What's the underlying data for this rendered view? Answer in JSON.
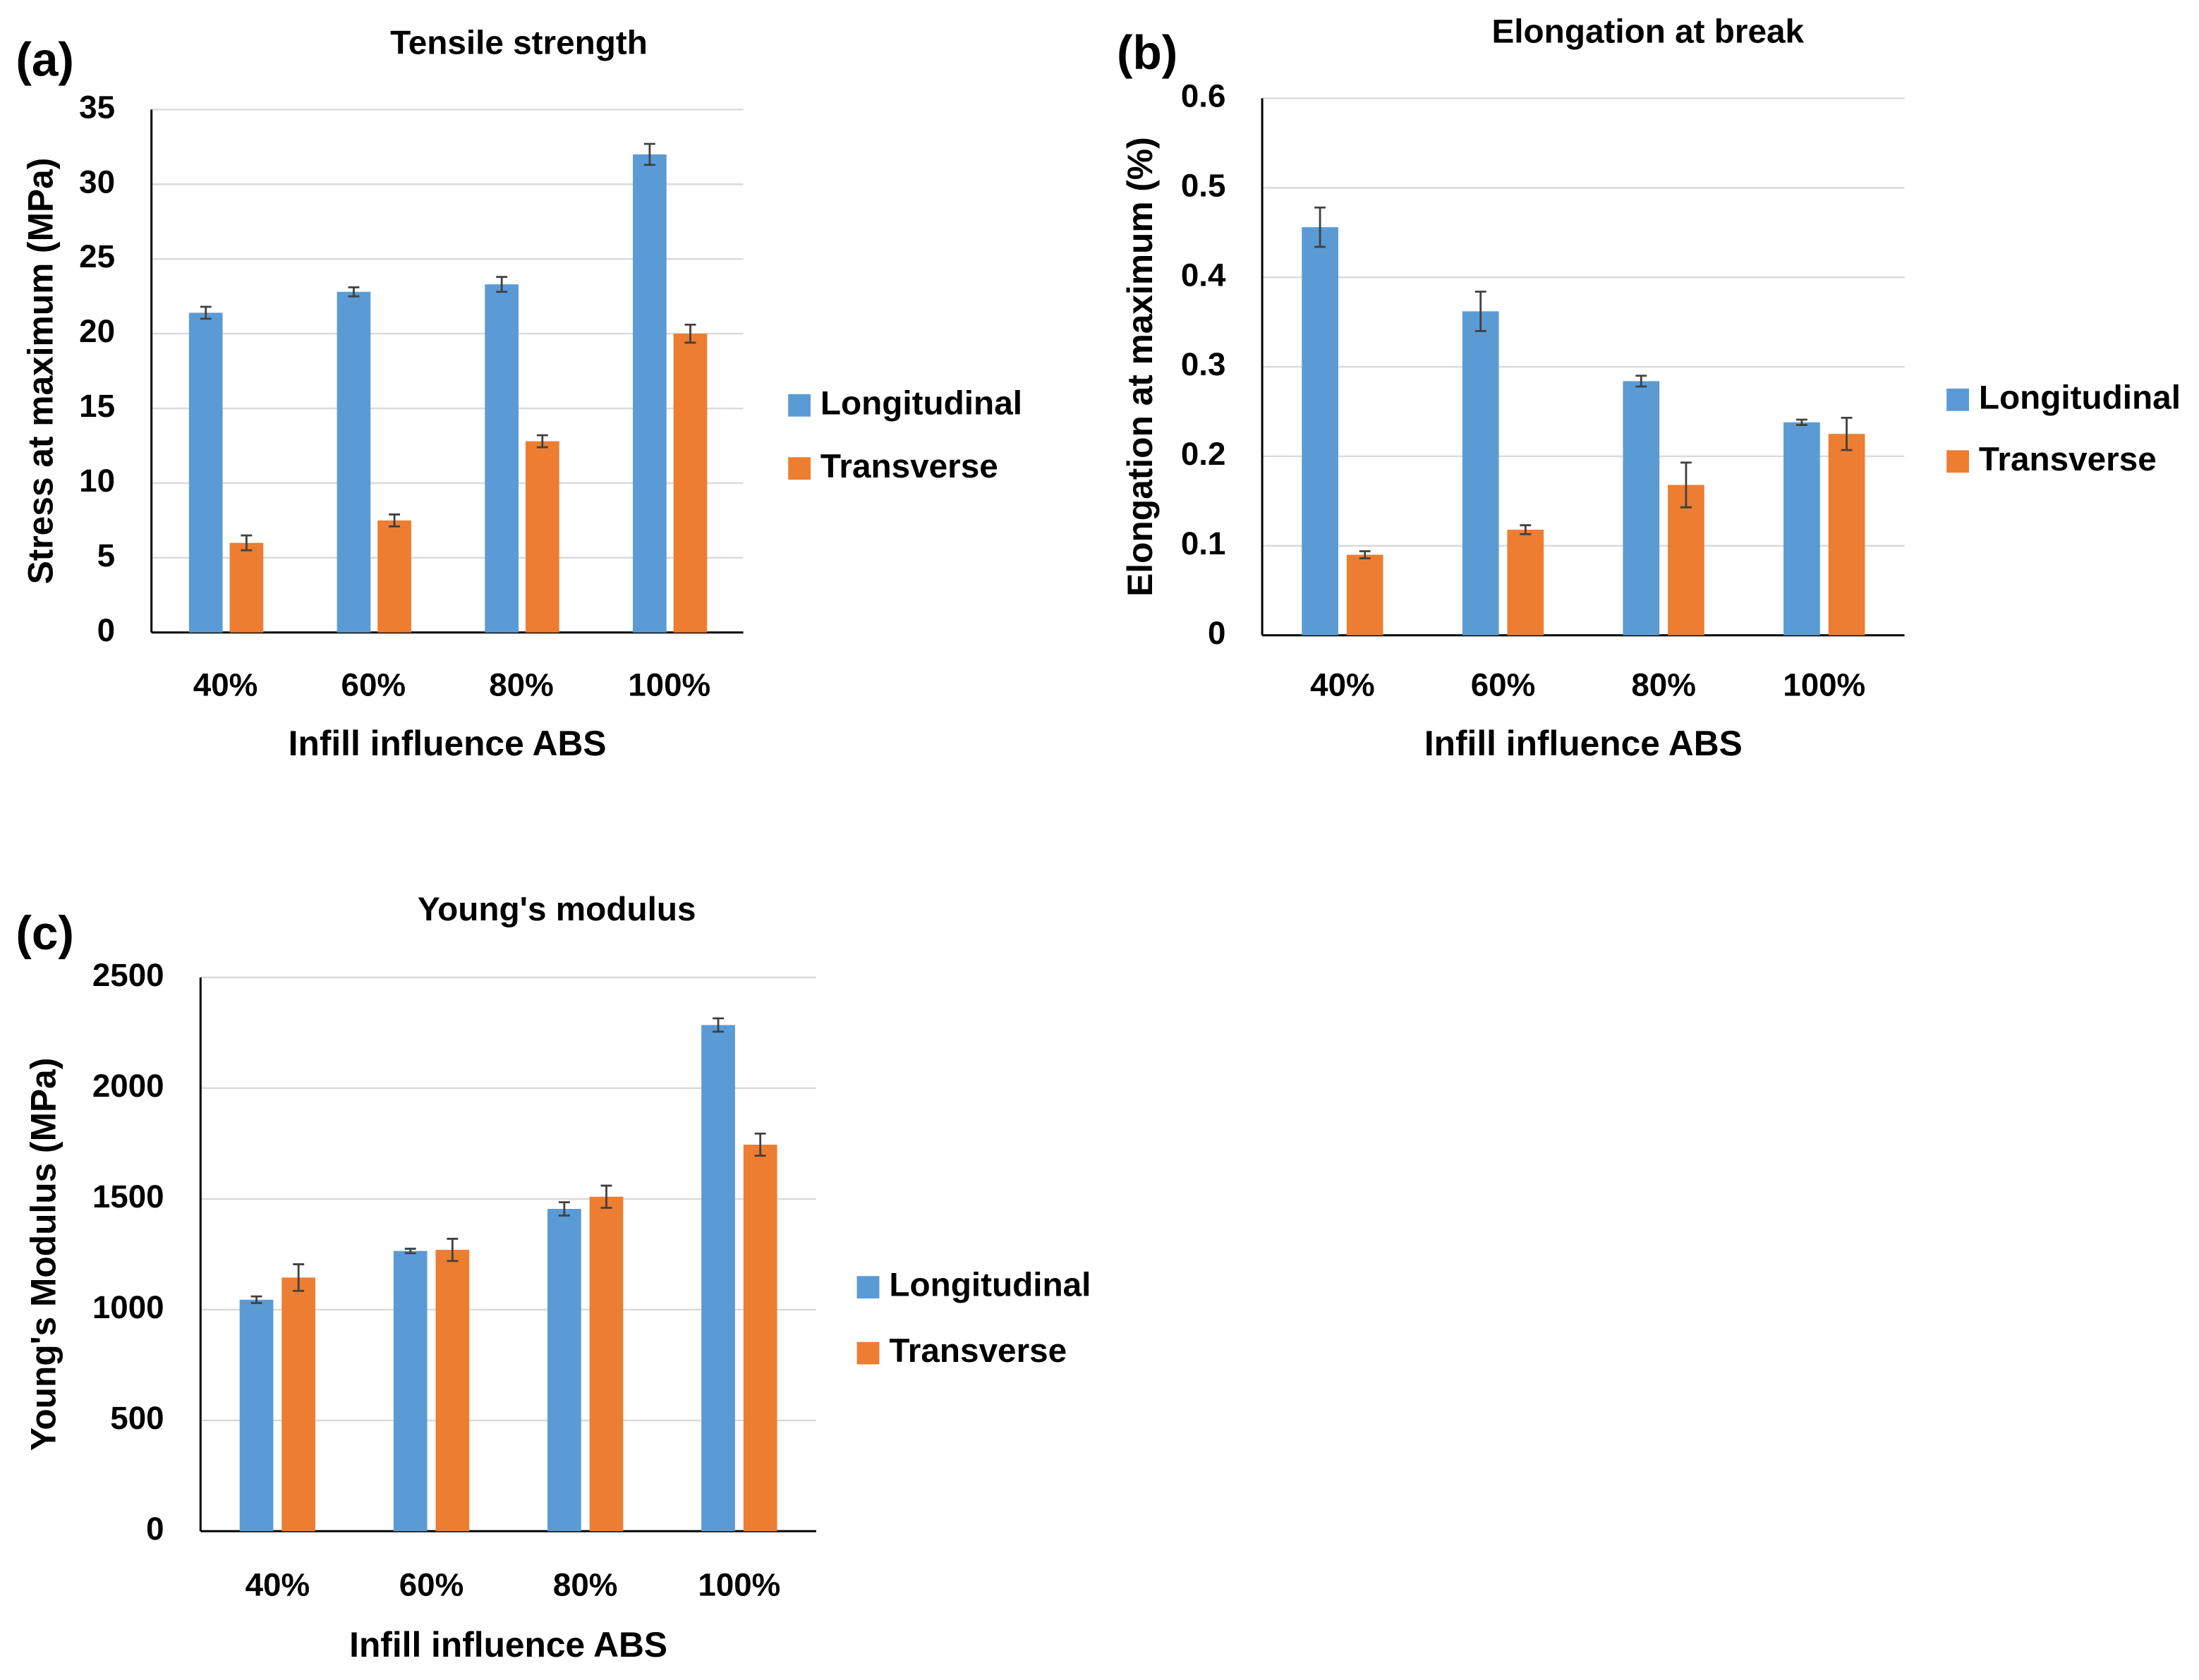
{
  "chart_data": [
    {
      "type": "bar",
      "panel_label": "(a)",
      "title": "Tensile strength",
      "x_label": "Infill influence ABS",
      "y_label": "Stress at maximum (MPa)",
      "categories": [
        "40%",
        "60%",
        "80%",
        "100%"
      ],
      "series": [
        {
          "name": "Longitudinal",
          "color": "#5b9bd5",
          "values": [
            21.4,
            22.8,
            23.3,
            32.0
          ],
          "errors": [
            0.4,
            0.3,
            0.5,
            0.7
          ]
        },
        {
          "name": "Transverse",
          "color": "#ed7d31",
          "values": [
            6.0,
            7.5,
            12.8,
            20.0
          ],
          "errors": [
            0.5,
            0.4,
            0.4,
            0.6
          ]
        }
      ],
      "ylim": [
        0,
        35
      ],
      "yticks": [
        0,
        5,
        10,
        15,
        20,
        25,
        30,
        35
      ],
      "grid": true,
      "legend": "right"
    },
    {
      "type": "bar",
      "panel_label": "(b)",
      "title": "Elongation at break",
      "x_label": "Infill influence ABS",
      "y_label": "Elongation at maximum (%)",
      "categories": [
        "40%",
        "60%",
        "80%",
        "100%"
      ],
      "series": [
        {
          "name": "Longitudinal",
          "color": "#5b9bd5",
          "values": [
            0.456,
            0.362,
            0.284,
            0.238
          ],
          "errors": [
            0.022,
            0.022,
            0.006,
            0.003
          ]
        },
        {
          "name": "Transverse",
          "color": "#ed7d31",
          "values": [
            0.09,
            0.118,
            0.168,
            0.225
          ],
          "errors": [
            0.004,
            0.005,
            0.025,
            0.018
          ]
        }
      ],
      "ylim": [
        0,
        0.6
      ],
      "yticks": [
        0,
        0.1,
        0.2,
        0.3,
        0.4,
        0.5,
        0.6
      ],
      "grid": true,
      "legend": "right"
    },
    {
      "type": "bar",
      "panel_label": "(c)",
      "title": "Young's modulus",
      "x_label": "Infill influence ABS",
      "y_label": "Young's Modulus (MPa)",
      "categories": [
        "40%",
        "60%",
        "80%",
        "100%"
      ],
      "series": [
        {
          "name": "Longitudinal",
          "color": "#5b9bd5",
          "values": [
            1045,
            1265,
            1455,
            2285
          ],
          "errors": [
            15,
            10,
            30,
            30
          ]
        },
        {
          "name": "Transverse",
          "color": "#ed7d31",
          "values": [
            1145,
            1270,
            1510,
            1745
          ],
          "errors": [
            60,
            50,
            50,
            50
          ]
        }
      ],
      "ylim": [
        0,
        2500
      ],
      "yticks": [
        0,
        500,
        1000,
        1500,
        2000,
        2500
      ],
      "grid": true,
      "legend": "right"
    }
  ]
}
